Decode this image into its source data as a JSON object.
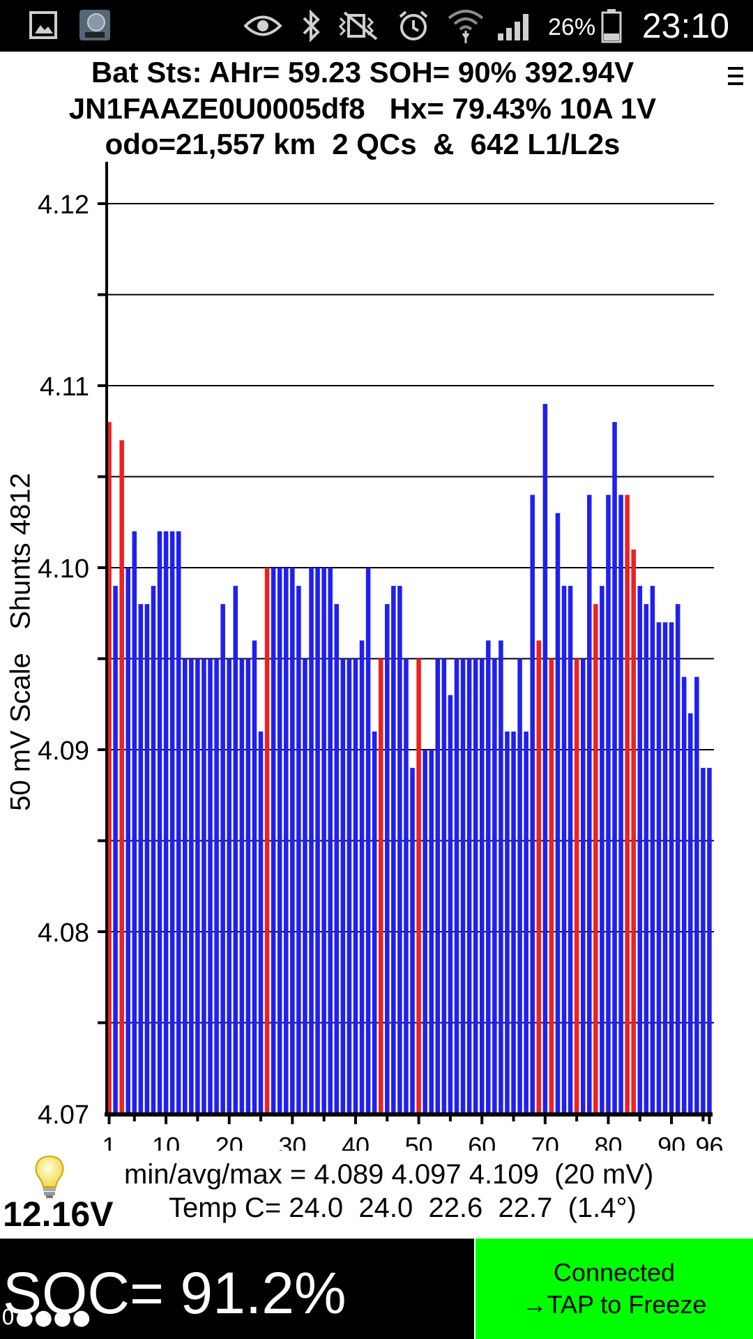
{
  "status_bar": {
    "time": "23:10",
    "battery_percent": "26%",
    "icons": [
      "gallery-icon",
      "car-app-icon",
      "eye-icon",
      "bluetooth-icon",
      "vibrate-mute-icon",
      "alarm-icon",
      "wifi-icon",
      "signal-icon",
      "battery-icon"
    ]
  },
  "header": {
    "line1": "Bat Sts: AHr= 59.23 SOH= 90% 392.94V",
    "line2": "JN1FAAZE0U0005df8   Hx= 79.43% 10A 1V",
    "line3": "odo=21,557 km  2 QCs  &  642 L1/L2s"
  },
  "chart_data": {
    "type": "bar",
    "ylabel": "50 mV Scale   Shunts 4812",
    "ylim": [
      4.07,
      4.12
    ],
    "y_ticks": [
      "4.12",
      "4.11",
      "4.10",
      "4.09",
      "4.08",
      "4.07"
    ],
    "x_tick_labels": [
      "1",
      "10",
      "20",
      "30",
      "40",
      "50",
      "60",
      "70",
      "80",
      "90",
      "96"
    ],
    "x_tick_values": [
      1,
      10,
      20,
      30,
      40,
      50,
      60,
      70,
      80,
      90,
      96
    ],
    "grid": true,
    "colors": {
      "normal": "#2020ee",
      "shunted": "#ee2020"
    },
    "cells": [
      1,
      2,
      3,
      4,
      5,
      6,
      7,
      8,
      9,
      10,
      11,
      12,
      13,
      14,
      15,
      16,
      17,
      18,
      19,
      20,
      21,
      22,
      23,
      24,
      25,
      26,
      27,
      28,
      29,
      30,
      31,
      32,
      33,
      34,
      35,
      36,
      37,
      38,
      39,
      40,
      41,
      42,
      43,
      44,
      45,
      46,
      47,
      48,
      49,
      50,
      51,
      52,
      53,
      54,
      55,
      56,
      57,
      58,
      59,
      60,
      61,
      62,
      63,
      64,
      65,
      66,
      67,
      68,
      69,
      70,
      71,
      72,
      73,
      74,
      75,
      76,
      77,
      78,
      79,
      80,
      81,
      82,
      83,
      84,
      85,
      86,
      87,
      88,
      89,
      90,
      91,
      92,
      93,
      94,
      95,
      96
    ],
    "values": [
      4.108,
      4.099,
      4.107,
      4.1,
      4.102,
      4.098,
      4.098,
      4.099,
      4.102,
      4.102,
      4.102,
      4.102,
      4.095,
      4.095,
      4.095,
      4.095,
      4.095,
      4.095,
      4.098,
      4.095,
      4.099,
      4.095,
      4.095,
      4.096,
      4.091,
      4.1,
      4.1,
      4.1,
      4.1,
      4.1,
      4.099,
      4.095,
      4.1,
      4.1,
      4.1,
      4.1,
      4.098,
      4.095,
      4.095,
      4.095,
      4.096,
      4.1,
      4.091,
      4.095,
      4.098,
      4.099,
      4.099,
      4.095,
      4.089,
      4.095,
      4.09,
      4.09,
      4.095,
      4.095,
      4.093,
      4.095,
      4.095,
      4.095,
      4.095,
      4.095,
      4.096,
      4.095,
      4.096,
      4.091,
      4.091,
      4.095,
      4.091,
      4.104,
      4.096,
      4.109,
      4.095,
      4.103,
      4.099,
      4.099,
      4.095,
      4.095,
      4.104,
      4.098,
      4.099,
      4.104,
      4.108,
      4.104,
      4.104,
      4.101,
      4.099,
      4.098,
      4.099,
      4.097,
      4.097,
      4.097,
      4.098,
      4.094,
      4.092,
      4.094,
      4.089,
      4.089
    ],
    "shunted": [
      1,
      3,
      26,
      44,
      50,
      69,
      71,
      75,
      78,
      83,
      84
    ]
  },
  "stats": {
    "minmax": "min/avg/max = 4.089 4.097 4.109  (20 mV)",
    "temps": "Temp C= 24.0  24.0  22.6  22.7  (1.4°)"
  },
  "aux_voltage": "12.16V",
  "soc": {
    "text": "SOC= 91.2%",
    "dots": "0●●●●"
  },
  "connect_button": {
    "line1": "Connected",
    "line2": "→TAP to Freeze"
  }
}
